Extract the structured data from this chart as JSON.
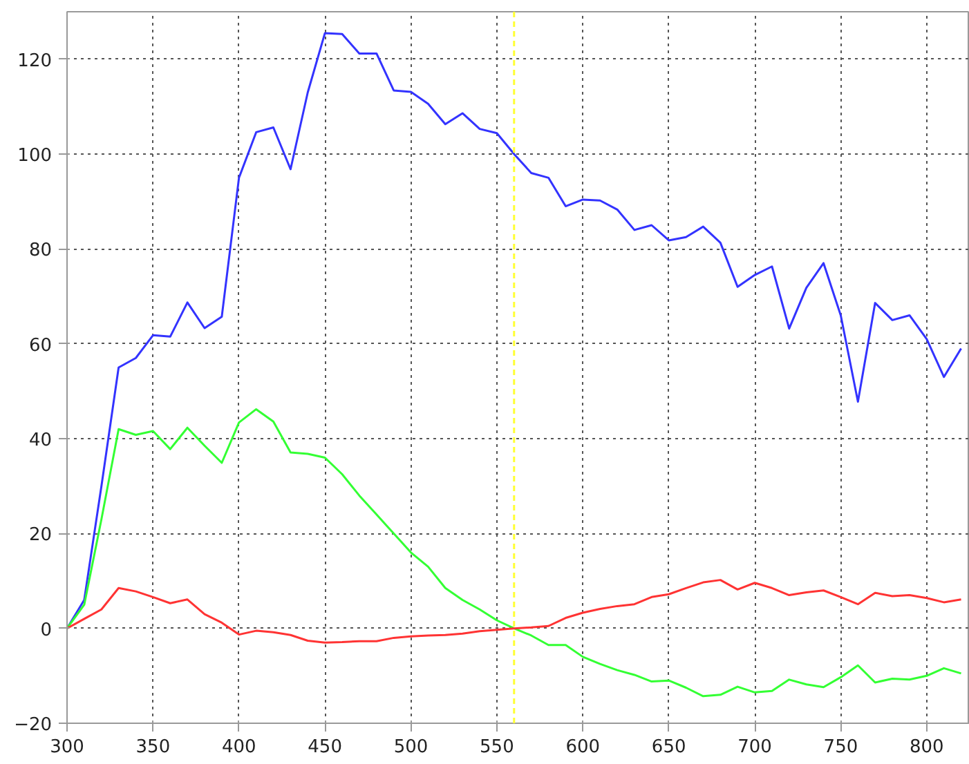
{
  "chart_data": {
    "type": "line",
    "x": [
      300,
      310,
      320,
      330,
      340,
      350,
      360,
      370,
      380,
      390,
      400,
      410,
      420,
      430,
      440,
      450,
      460,
      470,
      480,
      490,
      500,
      510,
      520,
      530,
      540,
      550,
      560,
      570,
      580,
      590,
      600,
      610,
      620,
      630,
      640,
      650,
      660,
      670,
      680,
      690,
      700,
      710,
      720,
      730,
      740,
      750,
      760,
      770,
      780,
      790,
      800,
      810,
      820
    ],
    "series": [
      {
        "color": "#3333ff",
        "values": [
          0,
          6,
          30,
          55,
          57,
          61.8,
          61.5,
          68.7,
          63.3,
          65.7,
          95,
          104.6,
          105.6,
          96.8,
          113,
          125.5,
          125.3,
          121.2,
          121.2,
          113.4,
          113.1,
          110.6,
          106.3,
          108.6,
          105.3,
          104.4,
          100,
          96,
          95,
          89,
          90.4,
          90.2,
          88.3,
          84,
          85,
          81.8,
          82.5,
          84.7,
          81.3,
          72,
          74.5,
          76.3,
          63.2,
          71.8,
          77,
          66,
          47.8,
          68.6,
          65,
          66,
          61,
          53,
          59
        ]
      },
      {
        "color": "#33ff33",
        "values": [
          0,
          5,
          23,
          42,
          40.8,
          41.6,
          37.8,
          42.3,
          38.5,
          34.9,
          43.4,
          46.2,
          43.6,
          37.1,
          36.8,
          36,
          32.5,
          28,
          24,
          20,
          16,
          13,
          8.5,
          6,
          4,
          1.7,
          0,
          -1.5,
          -3.5,
          -3.5,
          -6,
          -7.5,
          -8.8,
          -9.8,
          -11.2,
          -11,
          -12.5,
          -14.3,
          -14,
          -12.3,
          -13.5,
          -13.2,
          -10.8,
          -11.8,
          -12.4,
          -10.3,
          -7.8,
          -11.4,
          -10.6,
          -10.8,
          -10,
          -8.4,
          -9.5
        ]
      },
      {
        "color": "#ff3333",
        "values": [
          0,
          2,
          4,
          8.5,
          7.8,
          6.6,
          5.3,
          6.1,
          3,
          1.2,
          -1.3,
          -0.5,
          -0.8,
          -1.4,
          -2.6,
          -3,
          -2.9,
          -2.7,
          -2.7,
          -2,
          -1.7,
          -1.5,
          -1.4,
          -1.1,
          -0.6,
          -0.3,
          0,
          0.2,
          0.5,
          2.2,
          3.3,
          4.1,
          4.7,
          5.1,
          6.6,
          7.2,
          8.5,
          9.7,
          10.2,
          8.2,
          9.6,
          8.5,
          7,
          7.6,
          8,
          6.6,
          5.1,
          7.5,
          6.8,
          7,
          6.4,
          5.5,
          6.1
        ]
      }
    ],
    "xlim": [
      300,
      825
    ],
    "ylim": [
      -20,
      130
    ],
    "xticks": [
      300,
      350,
      400,
      450,
      500,
      550,
      600,
      650,
      700,
      750,
      800
    ],
    "yticks": [
      -20,
      0,
      20,
      40,
      60,
      80,
      100,
      120
    ],
    "ref_lines": [
      {
        "axis": "x",
        "value": 560,
        "color": "#ffff33",
        "line_style": "dashed"
      }
    ],
    "grid": true,
    "marker": "none",
    "line_style": "solid"
  }
}
